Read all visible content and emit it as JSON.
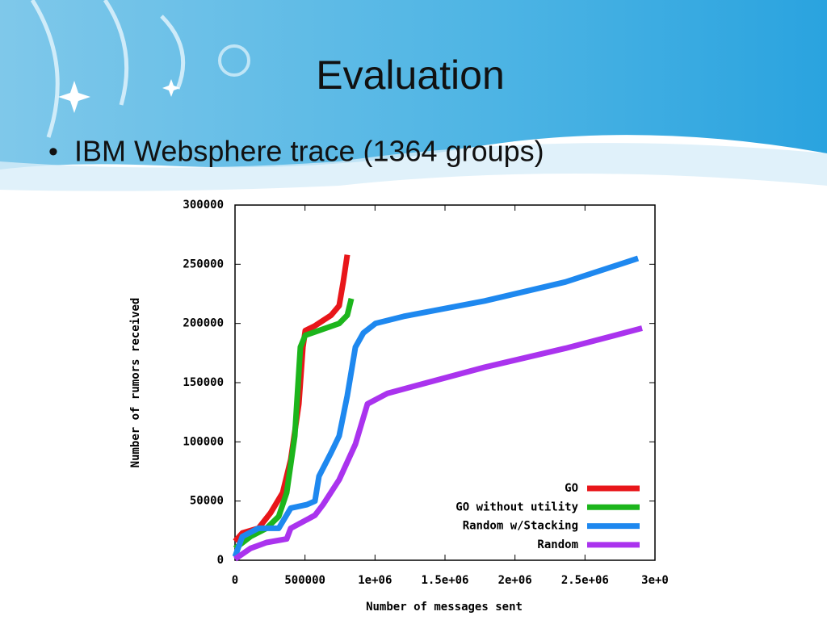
{
  "slide": {
    "title": "Evaluation",
    "bullet": "IBM Websphere trace (1364 groups)"
  },
  "chart_data": {
    "type": "line",
    "xlabel": "Number of messages sent",
    "ylabel": "Number of rumors received",
    "xlim": [
      0,
      3000000
    ],
    "ylim": [
      0,
      300000
    ],
    "xticks": [
      0,
      500000,
      {
        "value": 1000000,
        "label": "1e+06"
      },
      {
        "value": 1500000,
        "label": "1.5e+06"
      },
      {
        "value": 2000000,
        "label": "2e+06"
      },
      {
        "value": 2500000,
        "label": "2.5e+06"
      },
      {
        "value": 3000000,
        "label": "3e+0"
      }
    ],
    "yticks": [
      0,
      50000,
      100000,
      150000,
      200000,
      250000,
      300000
    ],
    "legend": "lower-right",
    "series": [
      {
        "name": "GO",
        "color": "#e8161a",
        "x": [
          0,
          52000,
          167000,
          254000,
          340000,
          398000,
          456000,
          485000,
          502000,
          571000,
          687000,
          744000,
          773000,
          802000
        ],
        "values": [
          16000,
          23000,
          27000,
          40000,
          57000,
          85000,
          132000,
          180000,
          194000,
          198000,
          207000,
          215000,
          235000,
          258000
        ]
      },
      {
        "name": "GO without utility",
        "color": "#1cb51c",
        "x": [
          0,
          110000,
          225000,
          312000,
          369000,
          427000,
          467000,
          502000,
          600000,
          744000,
          802000,
          831000
        ],
        "values": [
          10000,
          20000,
          27000,
          37000,
          57000,
          105000,
          180000,
          190000,
          194000,
          200000,
          207000,
          221000
        ]
      },
      {
        "name": "Random w/Stacking",
        "color": "#1e88ef",
        "x": [
          0,
          52000,
          167000,
          312000,
          398000,
          514000,
          571000,
          600000,
          687000,
          744000,
          802000,
          860000,
          917000,
          1004000,
          1206000,
          1783000,
          2360000,
          2879000
        ],
        "values": [
          3000,
          20000,
          27000,
          27000,
          44000,
          47000,
          50000,
          71000,
          91000,
          105000,
          139000,
          180000,
          192000,
          200000,
          206000,
          219000,
          235000,
          255000
        ]
      },
      {
        "name": "Random",
        "color": "#aa33ee",
        "x": [
          0,
          110000,
          225000,
          369000,
          398000,
          571000,
          629000,
          744000,
          860000,
          946000,
          1090000,
          1783000,
          2360000,
          2908000
        ],
        "values": [
          1000,
          10000,
          15000,
          18000,
          27000,
          38000,
          47000,
          68000,
          98000,
          132000,
          141000,
          163000,
          179000,
          196000
        ]
      }
    ]
  }
}
